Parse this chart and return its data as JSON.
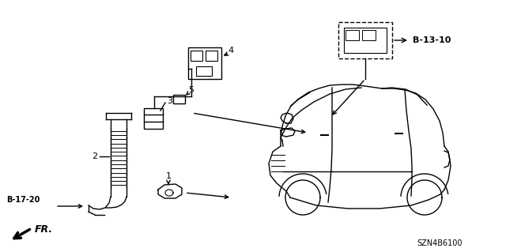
{
  "bg_color": "#ffffff",
  "fig_width": 6.4,
  "fig_height": 3.19,
  "labels": {
    "part1": "1",
    "part2": "2",
    "part3": "3",
    "part4": "4",
    "part5": "5",
    "ref_b1720": "B-17-20",
    "ref_b1310": "B-13-10",
    "code": "SZN4B6100",
    "fr_label": "FR."
  }
}
